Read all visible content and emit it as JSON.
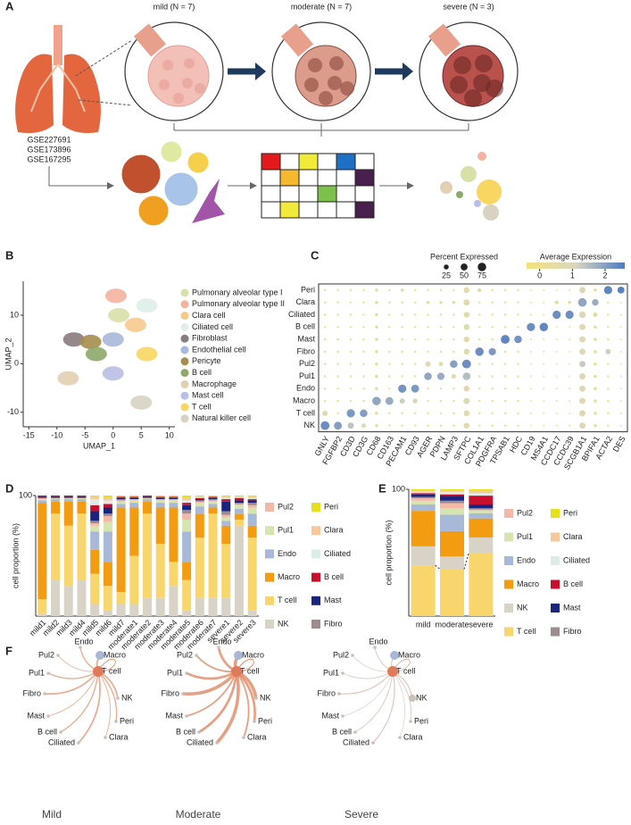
{
  "panel_labels": [
    "A",
    "B",
    "C",
    "D",
    "E",
    "F"
  ],
  "panel_a": {
    "stages": [
      "mild (N = 7)",
      "moderate (N = 7)",
      "severe (N = 3)"
    ],
    "datasets": [
      "GSE227691",
      "GSE173896",
      "GSE167295"
    ]
  },
  "chart_data": [
    {
      "type": "scatter",
      "xlabel": "UMAP_1",
      "ylabel": "UMAP_2",
      "xlim": [
        -16,
        11
      ],
      "xticks": [
        -15,
        -10,
        -5,
        0,
        5,
        10
      ],
      "ylim": [
        -13,
        17
      ],
      "yticks": [
        -10,
        0,
        10
      ],
      "series": [
        {
          "name": "Pulmonary alveolar type I",
          "color": "#d8e0a8",
          "x": [
            1
          ],
          "y": [
            10
          ]
        },
        {
          "name": "Pulmonary alveolar type II",
          "color": "#f4b3a0",
          "x": [
            0.5
          ],
          "y": [
            14
          ]
        },
        {
          "name": "Clara cell",
          "color": "#f7c98e",
          "x": [
            4
          ],
          "y": [
            8
          ]
        },
        {
          "name": "Ciliated cell",
          "color": "#dfeee9",
          "x": [
            6
          ],
          "y": [
            12
          ]
        },
        {
          "name": "Fibroblast",
          "color": "#8a7b7e",
          "x": [
            -7
          ],
          "y": [
            5
          ]
        },
        {
          "name": "Endothelial cell",
          "color": "#a9b8dc",
          "x": [
            0
          ],
          "y": [
            5
          ]
        },
        {
          "name": "Pericyte",
          "color": "#a68d4f",
          "x": [
            -4
          ],
          "y": [
            4.5
          ]
        },
        {
          "name": "B cell",
          "color": "#8ca86a",
          "x": [
            -3
          ],
          "y": [
            2
          ]
        },
        {
          "name": "Macrophage",
          "color": "#e3cfb3",
          "x": [
            -8
          ],
          "y": [
            -3
          ]
        },
        {
          "name": "Mast cell",
          "color": "#b9bfe6",
          "x": [
            0
          ],
          "y": [
            -2
          ]
        },
        {
          "name": "T cell",
          "color": "#f8d661",
          "x": [
            6
          ],
          "y": [
            2
          ]
        },
        {
          "name": "Natural killer cell",
          "color": "#d8d2c3",
          "x": [
            5
          ],
          "y": [
            -8
          ]
        }
      ]
    },
    {
      "type": "dot",
      "categories": [
        "GNLY",
        "FGFBP2",
        "CD3D",
        "CD3G",
        "CD68",
        "CD163",
        "PECAM1",
        "CD93",
        "AGER",
        "PDPN",
        "LAMP3",
        "SFTPC",
        "COL1A1",
        "PDGFRA",
        "TPSAB1",
        "HDC",
        "CD19",
        "MS4A1",
        "CCDC17",
        "CCDC39",
        "SCGB1A1",
        "BPIFA1",
        "ACTA2",
        "DES"
      ],
      "rows": [
        "Peri",
        "Clara",
        "Ciliated",
        "B cell",
        "Mast",
        "Fibro",
        "Pul2",
        "Pul1",
        "Endo",
        "Macro",
        "T cell",
        "NK"
      ],
      "percent": [
        [
          5,
          5,
          5,
          5,
          10,
          5,
          10,
          5,
          5,
          5,
          5,
          35,
          15,
          5,
          5,
          5,
          3,
          3,
          3,
          3,
          40,
          10,
          70,
          50
        ],
        [
          5,
          5,
          5,
          5,
          10,
          5,
          5,
          5,
          10,
          10,
          10,
          40,
          5,
          5,
          5,
          5,
          3,
          3,
          15,
          10,
          75,
          45,
          5,
          3
        ],
        [
          5,
          5,
          5,
          5,
          10,
          5,
          5,
          5,
          5,
          5,
          5,
          35,
          5,
          5,
          5,
          5,
          3,
          3,
          70,
          70,
          45,
          20,
          5,
          3
        ],
        [
          5,
          5,
          5,
          5,
          10,
          5,
          5,
          5,
          5,
          5,
          5,
          35,
          5,
          5,
          5,
          5,
          70,
          75,
          3,
          3,
          40,
          10,
          5,
          3
        ],
        [
          5,
          5,
          5,
          5,
          10,
          5,
          5,
          5,
          5,
          5,
          5,
          35,
          5,
          5,
          80,
          60,
          3,
          3,
          3,
          3,
          40,
          10,
          5,
          3
        ],
        [
          5,
          5,
          5,
          5,
          10,
          5,
          5,
          5,
          5,
          5,
          5,
          35,
          75,
          55,
          5,
          5,
          3,
          3,
          3,
          3,
          40,
          10,
          30,
          3
        ],
        [
          5,
          5,
          5,
          5,
          10,
          5,
          5,
          5,
          30,
          20,
          60,
          80,
          5,
          5,
          5,
          5,
          3,
          3,
          3,
          3,
          40,
          10,
          5,
          3
        ],
        [
          5,
          5,
          5,
          5,
          10,
          5,
          5,
          5,
          60,
          55,
          20,
          60,
          5,
          5,
          5,
          5,
          3,
          3,
          3,
          3,
          40,
          10,
          5,
          3
        ],
        [
          5,
          5,
          5,
          5,
          10,
          5,
          70,
          65,
          5,
          5,
          5,
          35,
          5,
          5,
          5,
          5,
          3,
          3,
          3,
          3,
          40,
          10,
          5,
          3
        ],
        [
          5,
          5,
          5,
          5,
          75,
          65,
          30,
          25,
          5,
          5,
          5,
          40,
          5,
          5,
          5,
          5,
          3,
          3,
          3,
          3,
          40,
          10,
          5,
          3
        ],
        [
          30,
          5,
          70,
          60,
          10,
          5,
          5,
          5,
          5,
          5,
          5,
          35,
          5,
          5,
          5,
          5,
          3,
          3,
          3,
          3,
          40,
          10,
          5,
          3
        ],
        [
          80,
          65,
          40,
          20,
          10,
          5,
          5,
          5,
          5,
          5,
          5,
          35,
          5,
          5,
          5,
          5,
          3,
          3,
          3,
          3,
          40,
          10,
          5,
          3
        ]
      ],
      "average": [
        [
          0,
          0,
          0,
          0,
          0.2,
          0,
          0.3,
          0,
          0,
          0,
          0,
          0.6,
          0.4,
          0,
          0,
          0,
          0,
          0,
          0,
          0,
          0.8,
          0.1,
          2.4,
          2.5
        ],
        [
          0,
          0,
          0,
          0,
          0.2,
          0,
          0,
          0,
          0.2,
          0.2,
          0.2,
          0.7,
          0,
          0,
          0,
          0,
          0,
          0,
          0.3,
          0.2,
          1.9,
          1.8,
          0,
          0
        ],
        [
          0,
          0,
          0,
          0,
          0.2,
          0,
          0,
          0,
          0,
          0,
          0,
          0.6,
          0,
          0,
          0,
          0,
          0,
          0,
          2.3,
          2.3,
          0.9,
          0.4,
          0,
          0
        ],
        [
          0,
          0,
          0,
          0,
          0.2,
          0,
          0,
          0,
          0,
          0,
          0,
          0.6,
          0,
          0,
          0,
          0,
          2.3,
          2.4,
          0,
          0,
          0.8,
          0.1,
          0,
          0
        ],
        [
          0,
          0,
          0,
          0,
          0.2,
          0,
          0,
          0,
          0,
          0,
          0,
          0.6,
          0,
          0,
          2.4,
          2.2,
          0,
          0,
          0,
          0,
          0.8,
          0.1,
          0,
          0
        ],
        [
          0,
          0,
          0,
          0,
          0.2,
          0,
          0,
          0,
          0,
          0,
          0,
          0.6,
          2.3,
          2.1,
          0,
          0,
          0,
          0,
          0,
          0,
          0.8,
          0.1,
          1.2,
          0
        ],
        [
          0,
          0,
          0,
          0,
          0.2,
          0,
          0,
          0,
          0.8,
          0.6,
          2.0,
          2.3,
          0,
          0,
          0,
          0,
          0,
          0,
          0,
          0,
          1.3,
          0.1,
          0,
          0
        ],
        [
          0,
          0,
          0,
          0,
          0.2,
          0,
          0,
          0,
          1.9,
          1.8,
          0.6,
          1.5,
          0,
          0,
          0,
          0,
          0,
          0,
          0,
          0,
          0.8,
          0.1,
          0,
          0
        ],
        [
          0,
          0,
          0,
          0,
          0.2,
          0,
          2.2,
          2.1,
          0,
          0,
          0,
          0.8,
          0,
          0,
          0,
          0,
          0,
          0,
          0,
          0,
          0.8,
          0.1,
          0,
          0
        ],
        [
          0,
          0,
          0,
          0,
          1.9,
          1.8,
          1.2,
          1.0,
          0,
          0,
          0,
          0.8,
          0,
          0,
          0,
          0,
          0,
          0,
          0,
          0,
          0.8,
          0.1,
          0,
          0
        ],
        [
          0.8,
          0,
          2.1,
          2.0,
          0.2,
          0,
          0,
          0,
          0,
          0,
          0,
          0.6,
          0,
          0,
          0,
          0,
          0,
          0,
          0,
          0,
          0.8,
          0.1,
          0,
          0
        ],
        [
          2.3,
          2.0,
          1.4,
          0.8,
          0.2,
          0,
          0,
          0,
          0,
          0,
          0,
          0.6,
          0,
          0,
          0,
          0,
          0,
          0,
          0,
          0,
          0.8,
          0.1,
          0,
          0
        ]
      ],
      "size_legend": {
        "title": "Percent Expressed",
        "values": [
          25,
          50,
          75
        ]
      },
      "color_legend": {
        "title": "Average Expression",
        "lim": [
          -0.4,
          2.6
        ],
        "ticks": [
          0,
          1,
          2
        ]
      }
    },
    {
      "type": "stacked_bar",
      "ylabel": "cell proportion (%)",
      "ylim": [
        0,
        100
      ],
      "yticks": [
        100
      ],
      "categories": [
        "mild1",
        "mild2",
        "mild3",
        "mild4",
        "mild5",
        "mild6",
        "mild7",
        "moderate1",
        "moderate2",
        "moderate3",
        "moderate4",
        "moderate5",
        "moderate6",
        "moderate7",
        "severe1",
        "severe2",
        "severe3"
      ],
      "series": [
        {
          "name": "NK",
          "color": "#d9d3c7",
          "values": [
            2,
            30,
            25,
            30,
            10,
            5,
            10,
            10,
            15,
            15,
            25,
            5,
            15,
            15,
            15,
            75,
            5
          ]
        },
        {
          "name": "T cell",
          "color": "#f9d66b",
          "values": [
            12,
            55,
            50,
            55,
            25,
            20,
            10,
            40,
            70,
            45,
            20,
            25,
            50,
            70,
            45,
            5,
            60
          ]
        },
        {
          "name": "Macro",
          "color": "#f39c12",
          "values": [
            80,
            10,
            20,
            10,
            20,
            20,
            70,
            40,
            10,
            30,
            45,
            15,
            20,
            5,
            15,
            5,
            10
          ]
        },
        {
          "name": "Endo",
          "color": "#a8b8d8",
          "values": [
            2,
            2,
            2,
            2,
            15,
            25,
            3,
            4,
            2,
            4,
            4,
            25,
            6,
            3,
            4,
            4,
            10
          ]
        },
        {
          "name": "Pul1",
          "color": "#d6e4b0",
          "values": [
            1,
            1,
            1,
            1,
            5,
            8,
            2,
            2,
            1,
            2,
            2,
            10,
            3,
            2,
            3,
            3,
            5
          ]
        },
        {
          "name": "Pul2",
          "color": "#f4b8a8",
          "values": [
            1,
            0,
            0,
            0,
            2,
            5,
            1,
            1,
            0,
            1,
            1,
            5,
            1,
            1,
            2,
            1,
            2
          ]
        },
        {
          "name": "Fibro",
          "color": "#9e8c8c",
          "values": [
            0,
            0,
            0,
            0,
            2,
            2,
            1,
            0,
            0,
            0,
            0,
            3,
            1,
            1,
            3,
            1,
            2
          ]
        },
        {
          "name": "Mast",
          "color": "#1a237e",
          "values": [
            1,
            1,
            1,
            1,
            8,
            5,
            1,
            1,
            1,
            1,
            1,
            4,
            1,
            1,
            8,
            2,
            2
          ]
        },
        {
          "name": "B cell",
          "color": "#c8102e",
          "values": [
            1,
            1,
            1,
            1,
            5,
            3,
            1,
            1,
            1,
            1,
            1,
            2,
            1,
            1,
            2,
            2,
            1
          ]
        },
        {
          "name": "Ciliated",
          "color": "#dcece8",
          "values": [
            0,
            0,
            0,
            0,
            5,
            3,
            0,
            0,
            0,
            0,
            0,
            2,
            1,
            0,
            1,
            1,
            1
          ]
        },
        {
          "name": "Clara",
          "color": "#f7c89b",
          "values": [
            0,
            0,
            0,
            0,
            2,
            2,
            0,
            0,
            0,
            0,
            0,
            2,
            0,
            0,
            1,
            0,
            1
          ]
        },
        {
          "name": "Peri",
          "color": "#e5e01a",
          "values": [
            0,
            0,
            0,
            0,
            1,
            2,
            1,
            1,
            0,
            1,
            1,
            2,
            1,
            1,
            1,
            1,
            1
          ]
        }
      ]
    },
    {
      "type": "stacked_bar",
      "ylabel": "cell proportion (%)",
      "ylim": [
        0,
        100
      ],
      "yticks": [
        100
      ],
      "categories": [
        "mild",
        "moderate",
        "severe"
      ],
      "series": [
        {
          "name": "T cell",
          "color": "#f9d66b",
          "values": [
            40,
            37,
            50
          ]
        },
        {
          "name": "NK",
          "color": "#d9d3c7",
          "values": [
            15,
            10,
            12
          ]
        },
        {
          "name": "Macro",
          "color": "#f39c12",
          "values": [
            28,
            20,
            15
          ]
        },
        {
          "name": "Endo",
          "color": "#a8b8d8",
          "values": [
            5,
            13,
            4
          ]
        },
        {
          "name": "Pul1",
          "color": "#d6e4b0",
          "values": [
            3,
            5,
            2
          ]
        },
        {
          "name": "Pul2",
          "color": "#f4b8a8",
          "values": [
            2,
            4,
            1
          ]
        },
        {
          "name": "Fibro",
          "color": "#9e8c8c",
          "values": [
            1,
            2,
            1
          ]
        },
        {
          "name": "Mast",
          "color": "#1a237e",
          "values": [
            2,
            4,
            3
          ]
        },
        {
          "name": "B cell",
          "color": "#c8102e",
          "values": [
            1,
            1,
            7
          ]
        },
        {
          "name": "Ciliated",
          "color": "#dcece8",
          "values": [
            1,
            2,
            2
          ]
        },
        {
          "name": "Clara",
          "color": "#f7c89b",
          "values": [
            1,
            1,
            2
          ]
        },
        {
          "name": "Peri",
          "color": "#e5e01a",
          "values": [
            1,
            1,
            1
          ]
        }
      ]
    }
  ],
  "panel_f": {
    "titles": [
      "Mild",
      "Moderate",
      "Severe"
    ],
    "nodes": [
      "T cell",
      "Endo",
      "Macro",
      "Pul2",
      "Pul1",
      "Fibro",
      "Mast",
      "B cell",
      "Ciliated",
      "Clara",
      "Peri",
      "NK"
    ]
  }
}
